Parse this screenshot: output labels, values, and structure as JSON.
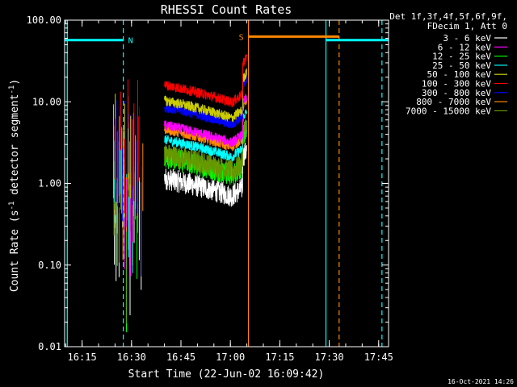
{
  "footer_timestamp": "16-Oct-2021 14:26",
  "chart_data": {
    "type": "line",
    "title": "RHESSI Count Rates",
    "xlabel": "Start Time (22-Jun-02 16:09:42)",
    "ylabel_main": "Count Rate (s",
    "ylabel_sup": "-1",
    "ylabel_tail": " detector segment",
    "ylabel_sup2": "-1",
    "ylabel_close": ")",
    "y_scale": "log",
    "ylim": [
      0.01,
      100
    ],
    "xlim": [
      "16:09:42",
      "17:48:00"
    ],
    "x_ticks": [
      "16:15",
      "16:30",
      "16:45",
      "17:00",
      "17:15",
      "17:30",
      "17:45"
    ],
    "y_ticks": [
      "100.00",
      "10.00",
      "1.00",
      "0.10",
      "0.01"
    ],
    "legend_header": [
      "Det 1f,3f,4f,5f,6f,9f,",
      "FDecim 1, Att 0"
    ],
    "legend_placement": "right",
    "series": [
      {
        "name": "3 - 6 keV",
        "color": "#ffffff",
        "level": 1.0
      },
      {
        "name": "6 - 12 keV",
        "color": "#ff00ff",
        "level": 4.5
      },
      {
        "name": "12 - 25 keV",
        "color": "#00ff00",
        "level": 1.8
      },
      {
        "name": "25 - 50 keV",
        "color": "#00ffff",
        "level": 3.0
      },
      {
        "name": "50 - 100 keV",
        "color": "#cccc00",
        "level": 9.0
      },
      {
        "name": "100 - 300 keV",
        "color": "#ff0000",
        "level": 14.0
      },
      {
        "name": "300 - 800 keV",
        "color": "#0000ff",
        "level": 7.5
      },
      {
        "name": "800 - 7000 keV",
        "color": "#ff8800",
        "level": 4.0
      },
      {
        "name": "7000 - 15000 keV",
        "color": "#669900",
        "level": 2.0
      }
    ],
    "annotations": [
      {
        "label": "N",
        "color": "#00ffff",
        "start": "16:09:42",
        "end": "16:27:30",
        "level": 57
      },
      {
        "label": "S",
        "color": "#ff8800",
        "start": "17:05:30",
        "end": "17:33:00",
        "level": 63
      },
      {
        "label": "",
        "color": "#00ffff",
        "start": "17:29:00",
        "end": "17:48:00",
        "level": 57
      }
    ],
    "vlines": [
      {
        "time": "16:10:30",
        "color": "#00ffff",
        "style": "solid"
      },
      {
        "time": "16:27:30",
        "color": "#00ffff",
        "style": "dashed"
      },
      {
        "time": "17:05:30",
        "color": "#ff8800",
        "style": "solid"
      },
      {
        "time": "17:29:00",
        "color": "#00ffff",
        "style": "solid"
      },
      {
        "time": "17:33:00",
        "color": "#ff8800",
        "style": "dashed"
      },
      {
        "time": "17:46:00",
        "color": "#00ffff",
        "style": "dashed"
      }
    ]
  }
}
